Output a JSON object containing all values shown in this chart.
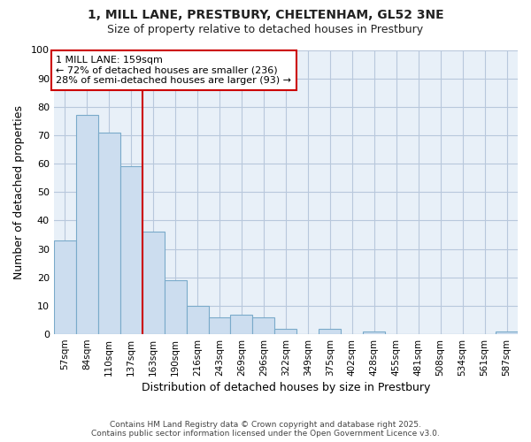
{
  "title_line1": "1, MILL LANE, PRESTBURY, CHELTENHAM, GL52 3NE",
  "title_line2": "Size of property relative to detached houses in Prestbury",
  "xlabel": "Distribution of detached houses by size in Prestbury",
  "ylabel": "Number of detached properties",
  "bar_color": "#ccddef",
  "bar_edge_color": "#7aaaca",
  "grid_color": "#b8c8dc",
  "bg_color": "#e8f0f8",
  "fig_bg_color": "#ffffff",
  "redline_color": "#cc0000",
  "categories": [
    "57sqm",
    "84sqm",
    "110sqm",
    "137sqm",
    "163sqm",
    "190sqm",
    "216sqm",
    "243sqm",
    "269sqm",
    "296sqm",
    "322sqm",
    "349sqm",
    "375sqm",
    "402sqm",
    "428sqm",
    "455sqm",
    "481sqm",
    "508sqm",
    "534sqm",
    "561sqm",
    "587sqm"
  ],
  "values": [
    33,
    77,
    71,
    59,
    36,
    19,
    10,
    6,
    7,
    6,
    2,
    0,
    2,
    0,
    1,
    0,
    0,
    0,
    0,
    0,
    1
  ],
  "redline_index": 4,
  "annotation_title": "1 MILL LANE: 159sqm",
  "annotation_line1": "← 72% of detached houses are smaller (236)",
  "annotation_line2": "28% of semi-detached houses are larger (93) →",
  "ylim": [
    0,
    100
  ],
  "yticks": [
    0,
    10,
    20,
    30,
    40,
    50,
    60,
    70,
    80,
    90,
    100
  ],
  "footnote1": "Contains HM Land Registry data © Crown copyright and database right 2025.",
  "footnote2": "Contains public sector information licensed under the Open Government Licence v3.0."
}
